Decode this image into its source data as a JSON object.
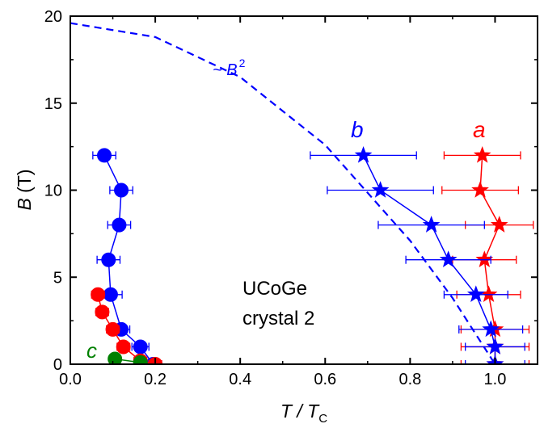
{
  "chart_data": {
    "type": "scatter",
    "xlabel": {
      "main": "T / T",
      "sub": "C"
    },
    "ylabel": {
      "main": "B",
      "unit": " (T)"
    },
    "xlim": [
      0.0,
      1.1
    ],
    "ylim": [
      0,
      20
    ],
    "x_ticks": [
      "0.0",
      "0.2",
      "0.4",
      "0.6",
      "0.8",
      "1.0"
    ],
    "y_ticks": [
      "0",
      "5",
      "10",
      "15",
      "20"
    ],
    "grid": false,
    "colors": {
      "blue": "#0000ff",
      "red": "#ff0000",
      "green": "#008000"
    },
    "annotations": {
      "fit_label": {
        "text": "~ B",
        "sup": "2"
      },
      "sample_line1": "UCoGe",
      "sample_line2": "crystal 2",
      "label_a": "a",
      "label_b": "b",
      "label_c": "c"
    },
    "fit_curve": {
      "name": "~ B^2",
      "color": "#0000ff",
      "style": "dashed",
      "x": [
        0.0,
        0.2,
        0.4,
        0.6,
        0.8,
        0.9,
        0.95,
        1.0
      ],
      "y": [
        19.6,
        18.8,
        16.5,
        12.6,
        7.1,
        3.8,
        1.9,
        0.0
      ]
    },
    "series": [
      {
        "axis": "a",
        "marker": "star",
        "color": "#ff0000",
        "points": [
          {
            "x": 0.97,
            "y": 12,
            "xerr": 0.09
          },
          {
            "x": 0.965,
            "y": 10,
            "xerr": 0.09
          },
          {
            "x": 1.01,
            "y": 8,
            "xerr": 0.08
          },
          {
            "x": 0.975,
            "y": 6,
            "xerr": 0.075
          },
          {
            "x": 0.985,
            "y": 4,
            "xerr": 0.075
          },
          {
            "x": 1.0,
            "y": 2,
            "xerr": 0.08
          },
          {
            "x": 1.0,
            "y": 1,
            "xerr": 0.08
          },
          {
            "x": 1.0,
            "y": 0,
            "xerr": 0.08
          }
        ]
      },
      {
        "axis": "b",
        "marker": "star",
        "color": "#0000ff",
        "points": [
          {
            "x": 0.69,
            "y": 12,
            "xerr": 0.125
          },
          {
            "x": 0.73,
            "y": 10,
            "xerr": 0.125
          },
          {
            "x": 0.85,
            "y": 8,
            "xerr": 0.125
          },
          {
            "x": 0.89,
            "y": 6,
            "xerr": 0.1
          },
          {
            "x": 0.955,
            "y": 4,
            "xerr": 0.075
          },
          {
            "x": 0.99,
            "y": 2,
            "xerr": 0.075
          },
          {
            "x": 1.0,
            "y": 1,
            "xerr": 0.07
          },
          {
            "x": 1.0,
            "y": 0,
            "xerr": 0.07
          }
        ]
      },
      {
        "axis": "b",
        "marker": "circle",
        "color": "#0000ff",
        "points": [
          {
            "x": 0.08,
            "y": 12,
            "xerr": 0.027
          },
          {
            "x": 0.12,
            "y": 10,
            "xerr": 0.027
          },
          {
            "x": 0.115,
            "y": 8,
            "xerr": 0.027
          },
          {
            "x": 0.09,
            "y": 6,
            "xerr": 0.027
          },
          {
            "x": 0.095,
            "y": 4,
            "xerr": 0.027
          },
          {
            "x": 0.12,
            "y": 2,
            "xerr": 0.02
          },
          {
            "x": 0.165,
            "y": 1,
            "xerr": 0.02
          },
          {
            "x": 0.195,
            "y": 0,
            "xerr": 0.02
          }
        ]
      },
      {
        "axis": "a",
        "marker": "circle",
        "color": "#ff0000",
        "points": [
          {
            "x": 0.065,
            "y": 4,
            "xerr": 0.015
          },
          {
            "x": 0.075,
            "y": 3,
            "xerr": 0.015
          },
          {
            "x": 0.1,
            "y": 2,
            "xerr": 0.015
          },
          {
            "x": 0.125,
            "y": 1,
            "xerr": 0.015
          },
          {
            "x": 0.165,
            "y": 0.2,
            "xerr": 0.015
          },
          {
            "x": 0.2,
            "y": 0,
            "xerr": 0.015
          }
        ]
      },
      {
        "axis": "c",
        "marker": "circle",
        "color": "#008000",
        "points": [
          {
            "x": 0.105,
            "y": 0.3,
            "xerr": 0.0
          },
          {
            "x": 0.165,
            "y": 0.1,
            "xerr": 0.0
          }
        ]
      }
    ]
  }
}
